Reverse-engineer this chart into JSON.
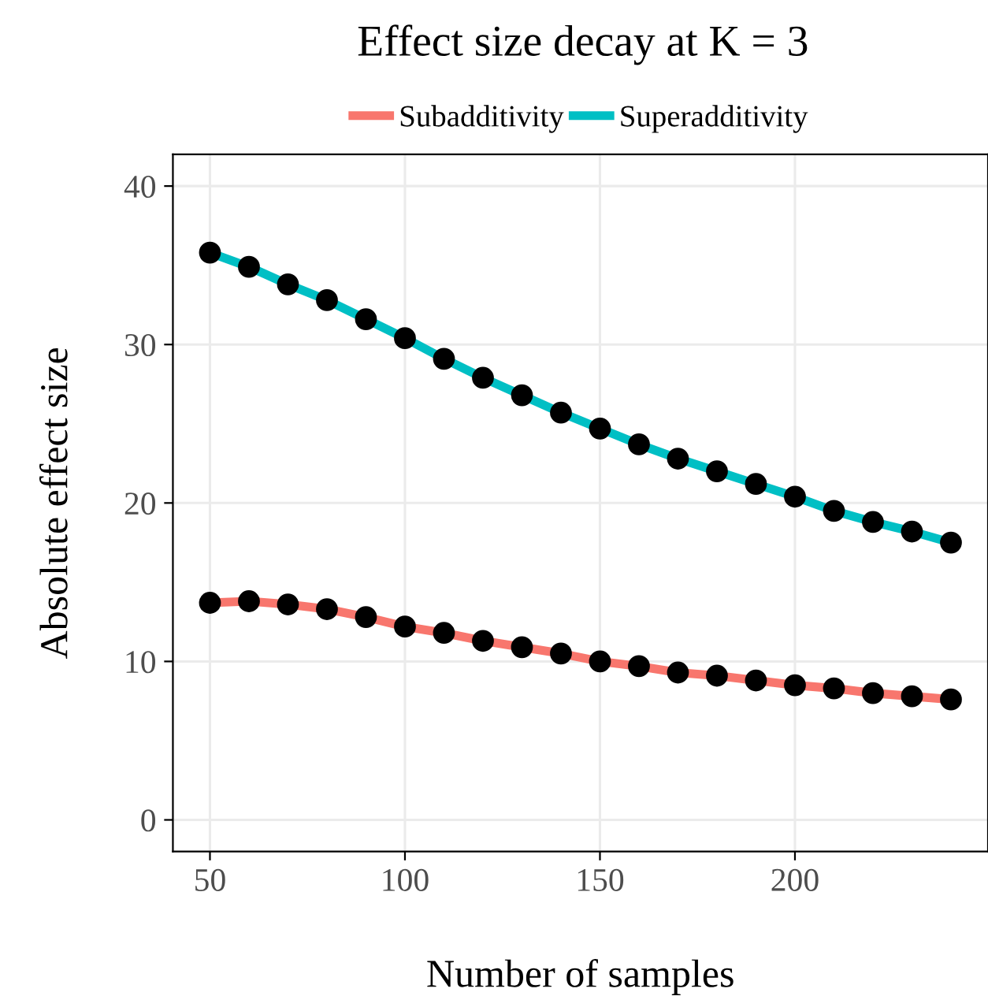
{
  "chart_data": {
    "type": "line",
    "title": "Effect size decay at K = 3",
    "xlabel": "Number of samples",
    "ylabel": "Absolute effect size",
    "x": [
      50,
      60,
      70,
      80,
      90,
      100,
      110,
      120,
      130,
      140,
      150,
      160,
      170,
      180,
      190,
      200,
      210,
      220,
      230,
      240
    ],
    "series": [
      {
        "name": "Subadditivity",
        "color": "#f8766d",
        "values": [
          13.7,
          13.8,
          13.6,
          13.3,
          12.8,
          12.2,
          11.8,
          11.3,
          10.9,
          10.5,
          10.0,
          9.7,
          9.3,
          9.1,
          8.8,
          8.5,
          8.3,
          8.0,
          7.8,
          7.6
        ]
      },
      {
        "name": "Superadditivity",
        "color": "#00bfc4",
        "values": [
          35.8,
          34.9,
          33.8,
          32.8,
          31.6,
          30.4,
          29.1,
          27.9,
          26.8,
          25.7,
          24.7,
          23.7,
          22.8,
          22.0,
          21.2,
          20.4,
          19.5,
          18.8,
          18.2,
          17.5
        ]
      }
    ],
    "xlim": [
      40.5,
      249.5
    ],
    "ylim": [
      -2,
      42
    ],
    "xticks": [
      50,
      100,
      150,
      200
    ],
    "yticks": [
      0,
      10,
      20,
      30,
      40
    ],
    "grid": true,
    "legend": "top",
    "marker": "circle",
    "line_style": "solid"
  }
}
